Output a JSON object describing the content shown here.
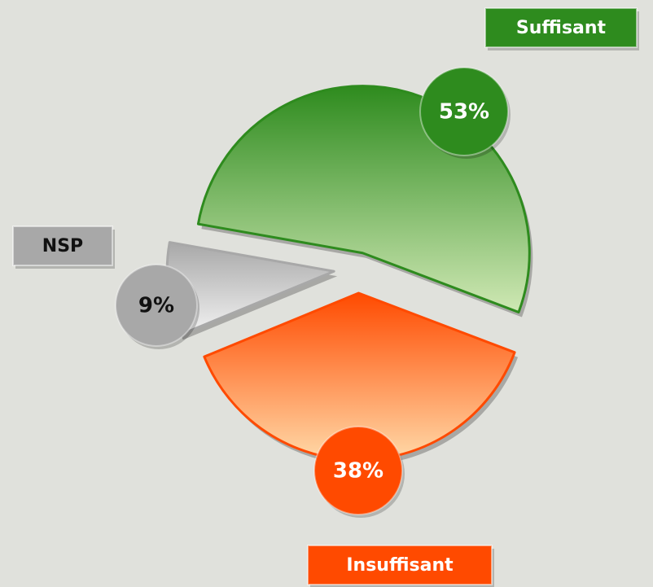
{
  "chart_data": {
    "type": "pie",
    "categories": [
      "Suffisant",
      "Insuffisant",
      "NSP"
    ],
    "values": [
      53,
      38,
      9
    ],
    "value_labels": [
      "53%",
      "38%",
      "9%"
    ],
    "colors": [
      "#2e8b1e",
      "#ff4a00",
      "#a8a8a8"
    ]
  }
}
